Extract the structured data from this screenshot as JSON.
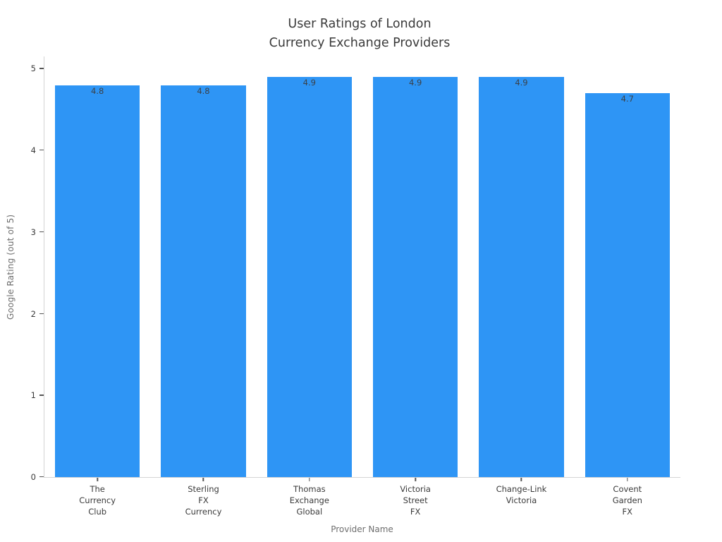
{
  "chart_data": {
    "type": "bar",
    "title": "User Ratings of London\nCurrency Exchange Providers",
    "xlabel": "Provider Name",
    "ylabel": "Google Rating (out of 5)",
    "categories": [
      "The\nCurrency\nClub",
      "Sterling\nFX\nCurrency",
      "Thomas\nExchange\nGlobal",
      "Victoria\nStreet\nFX",
      "Change-Link\nVictoria",
      "Covent\nGarden\nFX"
    ],
    "values": [
      4.8,
      4.8,
      4.9,
      4.9,
      4.9,
      4.7
    ],
    "value_labels": [
      "4.8",
      "4.8",
      "4.9",
      "4.9",
      "4.9",
      "4.7"
    ],
    "yticks": [
      0,
      1,
      2,
      3,
      4,
      5
    ],
    "ytick_labels": [
      "0",
      "1",
      "2",
      "3",
      "4",
      "5"
    ],
    "ylim": [
      0,
      5.15
    ],
    "grid": false,
    "legend": null,
    "bar_color": "#2E95F5",
    "title_color": "#3a3a3a",
    "tick_label_color": "#3a3a3a",
    "value_label_color": "#3b4148",
    "axis_title_color": "#6e6e6e",
    "spine_color": "#d4d4d4"
  }
}
